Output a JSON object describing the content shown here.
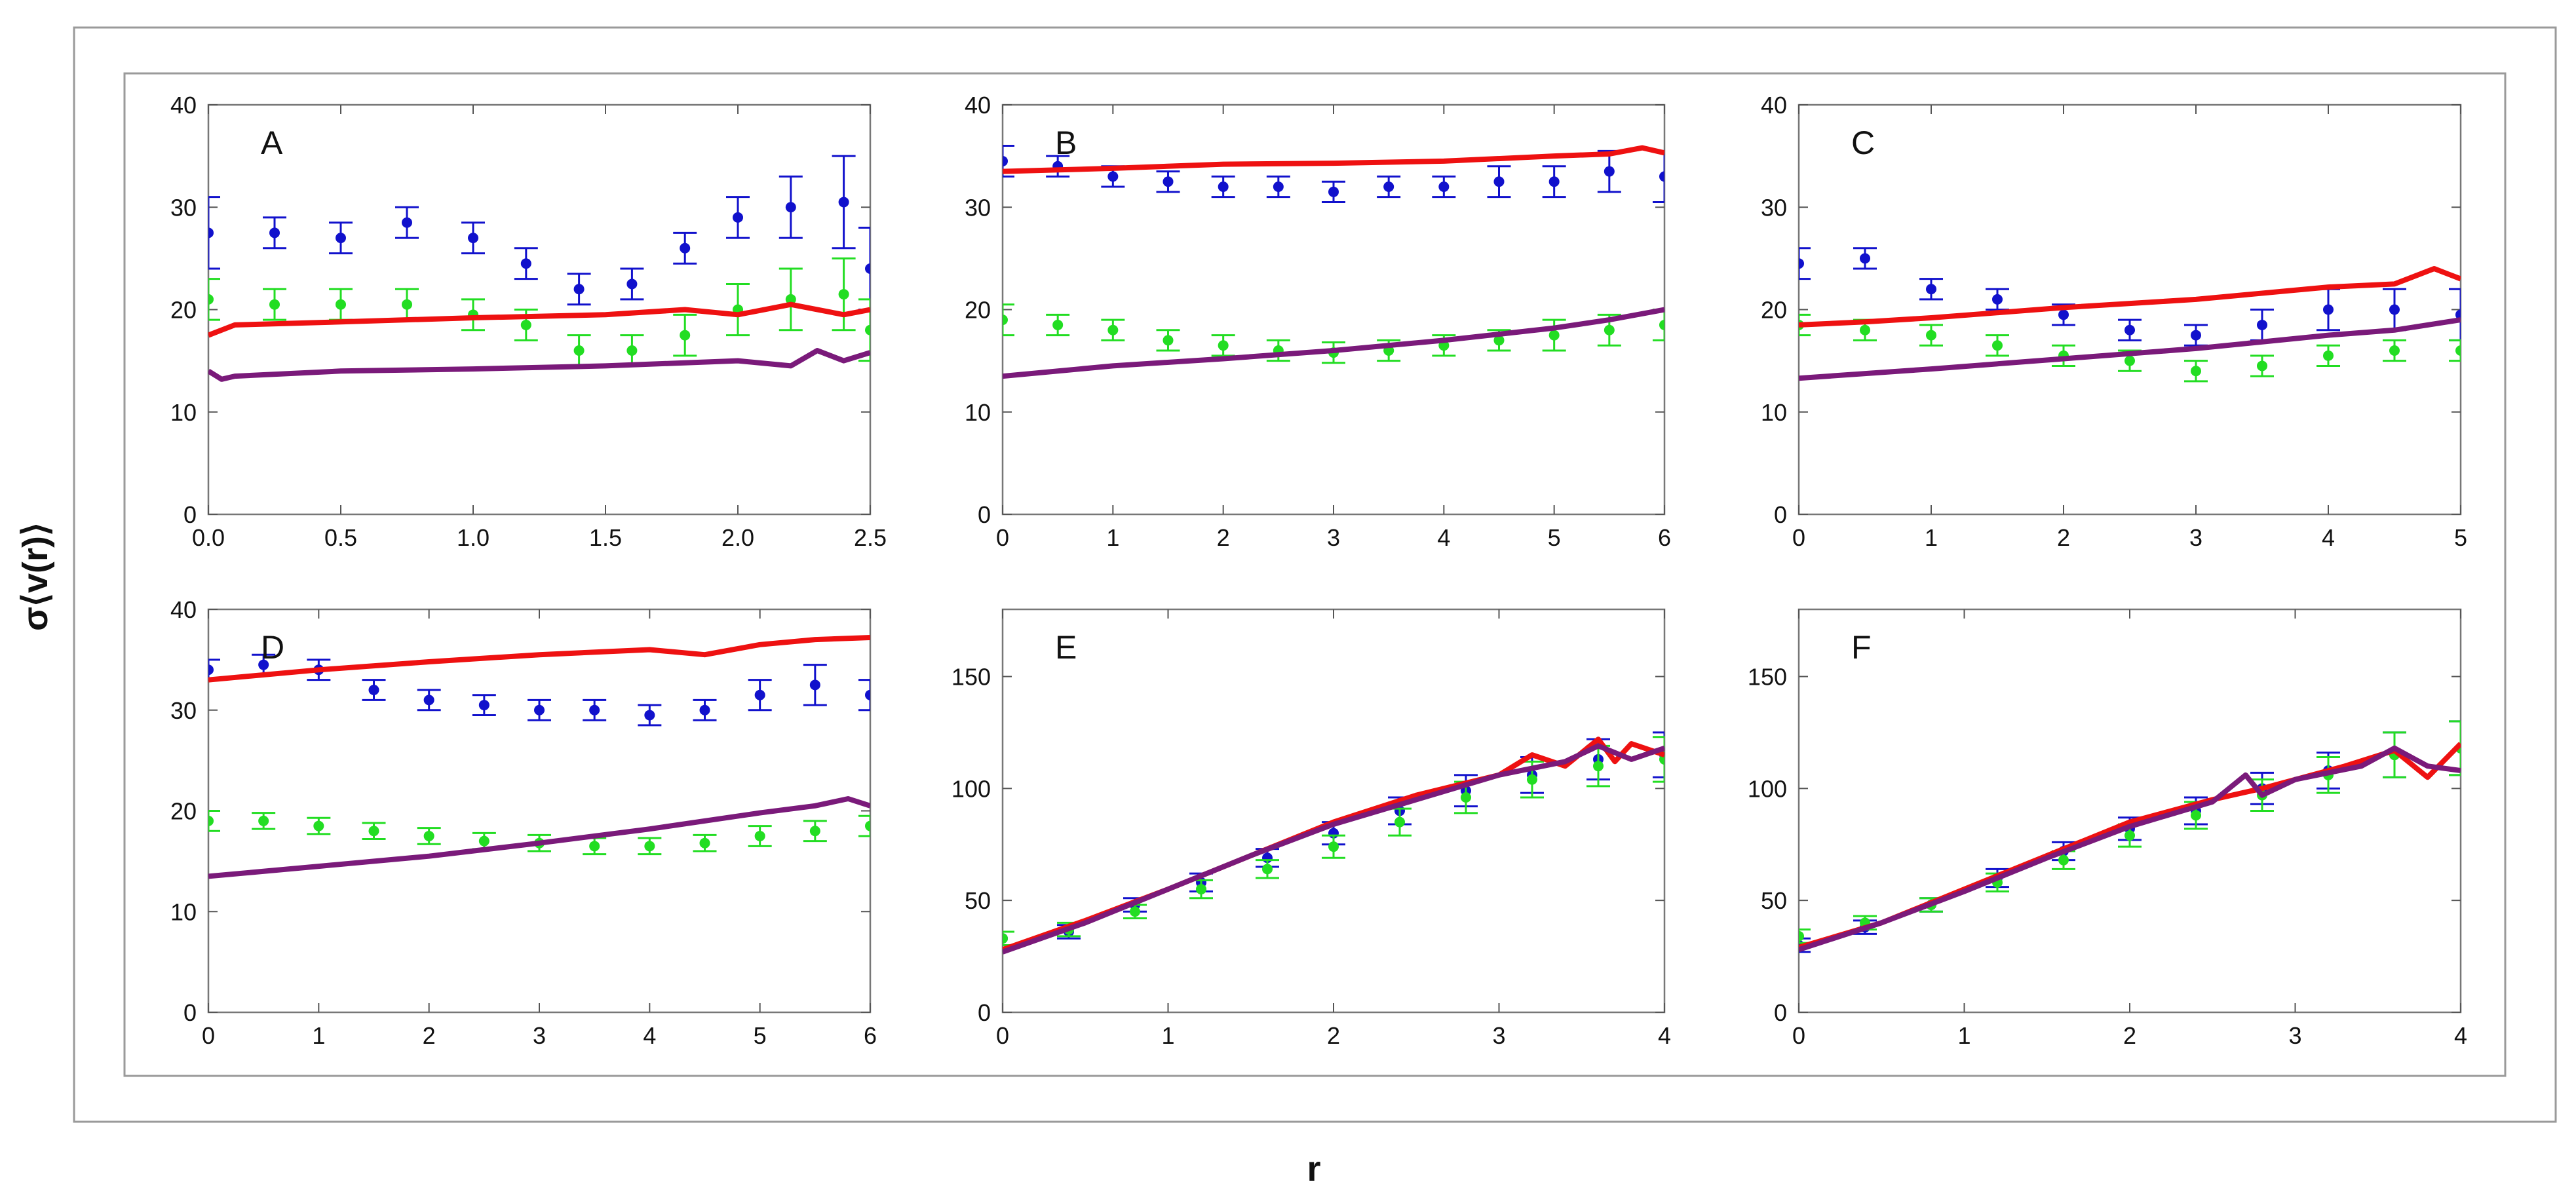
{
  "figure": {
    "ylabel": "σ⟨v(r)⟩",
    "xlabel": "r"
  },
  "series_styles": {
    "blue_points": {
      "color": "#1111cc",
      "kind": "points_with_error_bars"
    },
    "green_points": {
      "color": "#22dd22",
      "kind": "points_with_error_bars"
    },
    "red_line": {
      "color": "#ee1111",
      "kind": "line"
    },
    "purple_line": {
      "color": "#7a1a7a",
      "kind": "line"
    }
  },
  "chart_data": [
    {
      "panel": "A",
      "type": "line",
      "xlim": [
        0,
        2.5
      ],
      "ylim": [
        0,
        40
      ],
      "xticks": [
        0,
        0.5,
        1.0,
        1.5,
        2.0,
        2.5
      ],
      "xtick_labels": [
        "0.0",
        "0.5",
        "1.0",
        "1.5",
        "2.0",
        "2.5"
      ],
      "yticks": [
        0,
        10,
        20,
        30,
        40
      ],
      "series": [
        {
          "name": "blue",
          "style": "blue_points",
          "x": [
            0.0,
            0.25,
            0.5,
            0.75,
            1.0,
            1.2,
            1.4,
            1.6,
            1.8,
            2.0,
            2.2,
            2.4,
            2.5
          ],
          "y": [
            27.5,
            27.5,
            27.0,
            28.5,
            27.0,
            24.5,
            22.0,
            22.5,
            26.0,
            29.0,
            30.0,
            30.5,
            24.0
          ],
          "err": [
            3.5,
            1.5,
            1.5,
            1.5,
            1.5,
            1.5,
            1.5,
            1.5,
            1.5,
            2.0,
            3.0,
            4.5,
            4.0
          ]
        },
        {
          "name": "green",
          "style": "green_points",
          "x": [
            0.0,
            0.25,
            0.5,
            0.75,
            1.0,
            1.2,
            1.4,
            1.6,
            1.8,
            2.0,
            2.2,
            2.4,
            2.5
          ],
          "y": [
            21.0,
            20.5,
            20.5,
            20.5,
            19.5,
            18.5,
            16.0,
            16.0,
            17.5,
            20.0,
            21.0,
            21.5,
            18.0
          ],
          "err": [
            2.0,
            1.5,
            1.5,
            1.5,
            1.5,
            1.5,
            1.5,
            1.5,
            2.0,
            2.5,
            3.0,
            3.5,
            3.0
          ]
        },
        {
          "name": "red",
          "style": "red_line",
          "x": [
            0.0,
            0.1,
            0.5,
            1.0,
            1.5,
            1.8,
            2.0,
            2.2,
            2.4,
            2.5
          ],
          "y": [
            17.5,
            18.5,
            18.8,
            19.2,
            19.5,
            20.0,
            19.5,
            20.5,
            19.5,
            20.0
          ]
        },
        {
          "name": "purple",
          "style": "purple_line",
          "x": [
            0.0,
            0.05,
            0.1,
            0.5,
            1.0,
            1.5,
            2.0,
            2.2,
            2.3,
            2.4,
            2.5
          ],
          "y": [
            14.0,
            13.2,
            13.5,
            14.0,
            14.2,
            14.5,
            15.0,
            14.5,
            16.0,
            15.0,
            15.8
          ]
        }
      ]
    },
    {
      "panel": "B",
      "type": "line",
      "xlim": [
        0,
        6
      ],
      "ylim": [
        0,
        40
      ],
      "xticks": [
        0,
        1,
        2,
        3,
        4,
        5,
        6
      ],
      "xtick_labels": [
        "0",
        "1",
        "2",
        "3",
        "4",
        "5",
        "6"
      ],
      "yticks": [
        0,
        10,
        20,
        30,
        40
      ],
      "series": [
        {
          "name": "blue",
          "style": "blue_points",
          "x": [
            0.0,
            0.5,
            1.0,
            1.5,
            2.0,
            2.5,
            3.0,
            3.5,
            4.0,
            4.5,
            5.0,
            5.5,
            6.0
          ],
          "y": [
            34.5,
            34.0,
            33.0,
            32.5,
            32.0,
            32.0,
            31.5,
            32.0,
            32.0,
            32.5,
            32.5,
            33.5,
            33.0
          ],
          "err": [
            1.5,
            1.0,
            1.0,
            1.0,
            1.0,
            1.0,
            1.0,
            1.0,
            1.0,
            1.5,
            1.5,
            2.0,
            2.5
          ]
        },
        {
          "name": "green",
          "style": "green_points",
          "x": [
            0.0,
            0.5,
            1.0,
            1.5,
            2.0,
            2.5,
            3.0,
            3.5,
            4.0,
            4.5,
            5.0,
            5.5,
            6.0
          ],
          "y": [
            19.0,
            18.5,
            18.0,
            17.0,
            16.5,
            16.0,
            15.8,
            16.0,
            16.5,
            17.0,
            17.5,
            18.0,
            18.5
          ],
          "err": [
            1.5,
            1.0,
            1.0,
            1.0,
            1.0,
            1.0,
            1.0,
            1.0,
            1.0,
            1.0,
            1.5,
            1.5,
            1.5
          ]
        },
        {
          "name": "red",
          "style": "red_line",
          "x": [
            0.0,
            1.0,
            2.0,
            3.0,
            4.0,
            5.0,
            5.5,
            5.8,
            6.0
          ],
          "y": [
            33.5,
            33.8,
            34.2,
            34.3,
            34.5,
            35.0,
            35.2,
            35.8,
            35.3
          ]
        },
        {
          "name": "purple",
          "style": "purple_line",
          "x": [
            0.0,
            1.0,
            2.0,
            3.0,
            4.0,
            5.0,
            5.5,
            6.0
          ],
          "y": [
            13.5,
            14.5,
            15.2,
            16.0,
            17.0,
            18.2,
            19.0,
            20.0
          ]
        }
      ]
    },
    {
      "panel": "C",
      "type": "line",
      "xlim": [
        0,
        5
      ],
      "ylim": [
        0,
        40
      ],
      "xticks": [
        0,
        1,
        2,
        3,
        4,
        5
      ],
      "xtick_labels": [
        "0",
        "1",
        "2",
        "3",
        "4",
        "5"
      ],
      "yticks": [
        0,
        10,
        20,
        30,
        40
      ],
      "series": [
        {
          "name": "blue",
          "style": "blue_points",
          "x": [
            0.0,
            0.5,
            1.0,
            1.5,
            2.0,
            2.5,
            3.0,
            3.5,
            4.0,
            4.5,
            5.0
          ],
          "y": [
            24.5,
            25.0,
            22.0,
            21.0,
            19.5,
            18.0,
            17.5,
            18.5,
            20.0,
            20.0,
            19.5
          ],
          "err": [
            1.5,
            1.0,
            1.0,
            1.0,
            1.0,
            1.0,
            1.0,
            1.5,
            2.0,
            2.0,
            2.5
          ]
        },
        {
          "name": "green",
          "style": "green_points",
          "x": [
            0.0,
            0.5,
            1.0,
            1.5,
            2.0,
            2.5,
            3.0,
            3.5,
            4.0,
            4.5,
            5.0
          ],
          "y": [
            18.5,
            18.0,
            17.5,
            16.5,
            15.5,
            15.0,
            14.0,
            14.5,
            15.5,
            16.0,
            16.0
          ],
          "err": [
            1.0,
            1.0,
            1.0,
            1.0,
            1.0,
            1.0,
            1.0,
            1.0,
            1.0,
            1.0,
            1.0
          ]
        },
        {
          "name": "red",
          "style": "red_line",
          "x": [
            0.0,
            0.5,
            1.0,
            2.0,
            3.0,
            4.0,
            4.5,
            4.8,
            4.9,
            5.0
          ],
          "y": [
            18.5,
            18.8,
            19.2,
            20.2,
            21.0,
            22.2,
            22.5,
            24.0,
            23.5,
            23.0
          ]
        },
        {
          "name": "purple",
          "style": "purple_line",
          "x": [
            0.0,
            1.0,
            2.0,
            3.0,
            4.0,
            4.5,
            5.0
          ],
          "y": [
            13.3,
            14.2,
            15.2,
            16.2,
            17.5,
            18.0,
            19.0
          ]
        }
      ]
    },
    {
      "panel": "D",
      "type": "line",
      "xlim": [
        0,
        6
      ],
      "ylim": [
        0,
        40
      ],
      "xticks": [
        0,
        1,
        2,
        3,
        4,
        5,
        6
      ],
      "xtick_labels": [
        "0",
        "1",
        "2",
        "3",
        "4",
        "5",
        "6"
      ],
      "yticks": [
        0,
        10,
        20,
        30,
        40
      ],
      "series": [
        {
          "name": "blue",
          "style": "blue_points",
          "x": [
            0.0,
            0.5,
            1.0,
            1.5,
            2.0,
            2.5,
            3.0,
            3.5,
            4.0,
            4.5,
            5.0,
            5.5,
            6.0
          ],
          "y": [
            34.0,
            34.5,
            34.0,
            32.0,
            31.0,
            30.5,
            30.0,
            30.0,
            29.5,
            30.0,
            31.5,
            32.5,
            31.5
          ],
          "err": [
            1.0,
            1.0,
            1.0,
            1.0,
            1.0,
            1.0,
            1.0,
            1.0,
            1.0,
            1.0,
            1.5,
            2.0,
            1.5
          ]
        },
        {
          "name": "green",
          "style": "green_points",
          "x": [
            0.0,
            0.5,
            1.0,
            1.5,
            2.0,
            2.5,
            3.0,
            3.5,
            4.0,
            4.5,
            5.0,
            5.5,
            6.0
          ],
          "y": [
            19.0,
            19.0,
            18.5,
            18.0,
            17.5,
            17.0,
            16.8,
            16.5,
            16.5,
            16.8,
            17.5,
            18.0,
            18.5
          ],
          "err": [
            1.0,
            0.8,
            0.8,
            0.8,
            0.8,
            0.8,
            0.8,
            0.8,
            0.8,
            0.8,
            1.0,
            1.0,
            1.0
          ]
        },
        {
          "name": "red",
          "style": "red_line",
          "x": [
            0.0,
            1.0,
            2.0,
            3.0,
            4.0,
            4.5,
            5.0,
            5.5,
            6.0
          ],
          "y": [
            33.0,
            34.0,
            34.8,
            35.5,
            36.0,
            35.5,
            36.5,
            37.0,
            37.2
          ]
        },
        {
          "name": "purple",
          "style": "purple_line",
          "x": [
            0.0,
            1.0,
            2.0,
            3.0,
            4.0,
            5.0,
            5.5,
            5.8,
            6.0
          ],
          "y": [
            13.5,
            14.5,
            15.5,
            16.8,
            18.2,
            19.8,
            20.5,
            21.2,
            20.5
          ]
        }
      ]
    },
    {
      "panel": "E",
      "type": "line",
      "xlim": [
        0,
        4
      ],
      "ylim": [
        0,
        180
      ],
      "xticks": [
        0,
        1,
        2,
        3,
        4
      ],
      "xtick_labels": [
        "0",
        "1",
        "2",
        "3",
        "4"
      ],
      "yticks": [
        0,
        50,
        100,
        150
      ],
      "series": [
        {
          "name": "blue",
          "style": "blue_points",
          "x": [
            0.0,
            0.4,
            0.8,
            1.2,
            1.6,
            2.0,
            2.4,
            2.8,
            3.2,
            3.6,
            4.0
          ],
          "y": [
            33,
            36,
            48,
            58,
            69,
            80,
            90,
            99,
            106,
            113,
            115
          ],
          "err": [
            3,
            3,
            3,
            4,
            4,
            5,
            6,
            7,
            8,
            9,
            10
          ]
        },
        {
          "name": "green",
          "style": "green_points",
          "x": [
            0.0,
            0.4,
            0.8,
            1.2,
            1.6,
            2.0,
            2.4,
            2.8,
            3.2,
            3.6,
            4.0
          ],
          "y": [
            33,
            37,
            45,
            55,
            64,
            74,
            85,
            96,
            104,
            110,
            113
          ],
          "err": [
            3,
            3,
            3,
            4,
            4,
            5,
            6,
            7,
            8,
            9,
            10
          ]
        },
        {
          "name": "red",
          "style": "red_line",
          "x": [
            0.0,
            0.5,
            1.0,
            1.5,
            2.0,
            2.5,
            3.0,
            3.2,
            3.4,
            3.6,
            3.7,
            3.8,
            4.0
          ],
          "y": [
            28,
            41,
            55,
            70,
            85,
            97,
            106,
            115,
            110,
            122,
            112,
            120,
            115
          ]
        },
        {
          "name": "purple",
          "style": "purple_line",
          "x": [
            0.0,
            0.5,
            1.0,
            1.5,
            2.0,
            2.5,
            3.0,
            3.4,
            3.6,
            3.8,
            4.0
          ],
          "y": [
            27,
            40,
            55,
            70,
            84,
            95,
            106,
            112,
            119,
            113,
            118
          ]
        }
      ]
    },
    {
      "panel": "F",
      "type": "line",
      "xlim": [
        0,
        4
      ],
      "ylim": [
        0,
        180
      ],
      "xticks": [
        0,
        1,
        2,
        3,
        4
      ],
      "xtick_labels": [
        "0",
        "1",
        "2",
        "3",
        "4"
      ],
      "yticks": [
        0,
        50,
        100,
        150
      ],
      "series": [
        {
          "name": "blue",
          "style": "blue_points",
          "x": [
            0.0,
            0.4,
            0.8,
            1.2,
            1.6,
            2.0,
            2.4,
            2.8,
            3.2,
            3.6,
            4.0
          ],
          "y": [
            30,
            38,
            48,
            60,
            72,
            82,
            90,
            100,
            108,
            115,
            118
          ],
          "err": [
            3,
            3,
            3,
            4,
            4,
            5,
            6,
            7,
            8,
            10,
            12
          ]
        },
        {
          "name": "green",
          "style": "green_points",
          "x": [
            0.0,
            0.4,
            0.8,
            1.2,
            1.6,
            2.0,
            2.4,
            2.8,
            3.2,
            3.6,
            4.0
          ],
          "y": [
            34,
            40,
            48,
            58,
            68,
            79,
            88,
            97,
            106,
            115,
            118
          ],
          "err": [
            3,
            3,
            3,
            4,
            4,
            5,
            6,
            7,
            8,
            10,
            12
          ]
        },
        {
          "name": "red",
          "style": "red_line",
          "x": [
            0.0,
            0.5,
            1.0,
            1.5,
            2.0,
            2.5,
            2.8,
            3.0,
            3.3,
            3.6,
            3.8,
            4.0
          ],
          "y": [
            29,
            40,
            55,
            70,
            85,
            95,
            100,
            104,
            110,
            117,
            105,
            120
          ]
        },
        {
          "name": "purple",
          "style": "purple_line",
          "x": [
            0.0,
            0.5,
            1.0,
            1.5,
            2.0,
            2.5,
            2.7,
            2.8,
            3.0,
            3.4,
            3.6,
            3.8,
            4.0
          ],
          "y": [
            28,
            40,
            54,
            69,
            83,
            94,
            106,
            97,
            104,
            110,
            118,
            110,
            108
          ]
        }
      ]
    }
  ]
}
